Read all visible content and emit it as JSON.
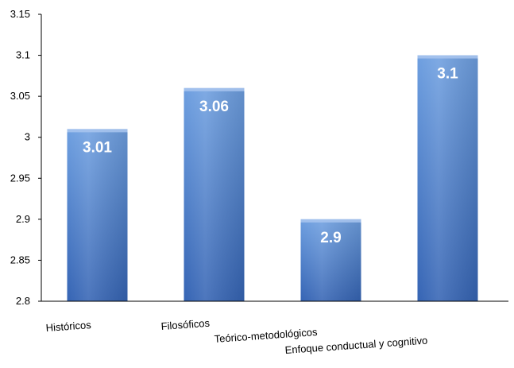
{
  "chart_data": {
    "type": "bar",
    "categories": [
      "Históricos",
      "Filosóficos",
      "Teórico-metodológicos",
      "Enfoque conductual y cognitivo"
    ],
    "values": [
      3.01,
      3.06,
      2.9,
      3.1
    ],
    "data_labels": [
      "3.01",
      "3.06",
      "2.9",
      "3.1"
    ],
    "ylim": [
      2.8,
      3.15
    ],
    "yticks": [
      2.8,
      2.85,
      2.9,
      2.95,
      3,
      3.05,
      3.1,
      3.15
    ],
    "ytick_labels": [
      "2.8",
      "2.85",
      "2.9",
      "2.95",
      "3",
      "3.05",
      "3.1",
      "3.15"
    ],
    "title": "",
    "xlabel": "",
    "ylabel": "",
    "grid": false,
    "legend": "none",
    "colors": {
      "bar_top": "#6e9fe0",
      "bar_bottom": "#3564b4",
      "label": "#ffffff",
      "axis": "#000000"
    }
  }
}
